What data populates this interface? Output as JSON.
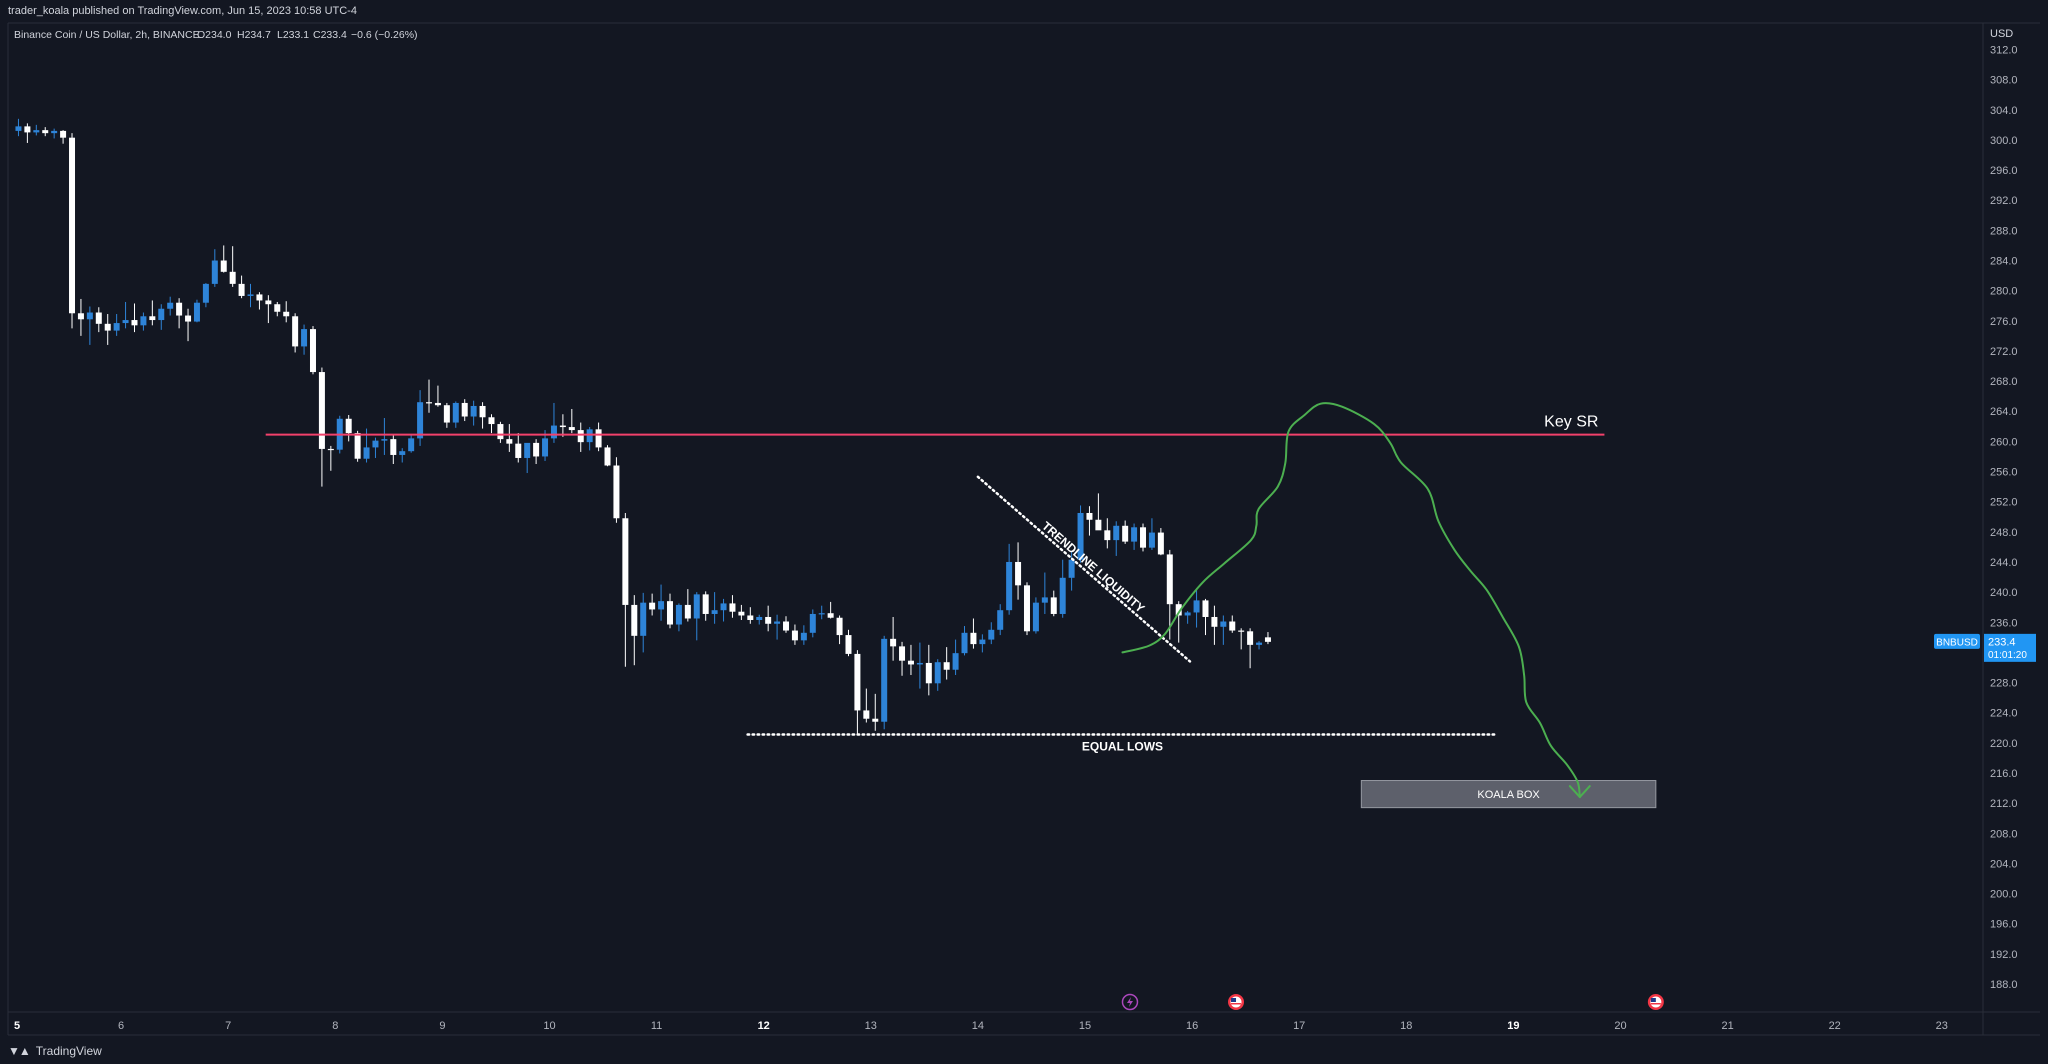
{
  "publisher": {
    "text": "trader_koala published on TradingView.com, Jun 15, 2023 10:58 UTC-4"
  },
  "footer": {
    "brand": "TradingView"
  },
  "legend": {
    "symbol": "Binance Coin / US Dollar, 2h, BINANCE",
    "open": "O234.0",
    "high": "H234.7",
    "low": "L233.1",
    "close": "C233.4",
    "change": "−0.6 (−0.26%)"
  },
  "colors": {
    "background": "#131722",
    "up": "#2e84d8",
    "down": "#ffffff",
    "key_sr": "#f2416b",
    "projection": "#4caf50",
    "price_badge": "#2196f3"
  },
  "chart_data": {
    "type": "candlestick",
    "ylim": [
      184,
      314
    ],
    "xlim": [
      5,
      23.4
    ],
    "currency": "USD",
    "y_ticks": [
      "312.0",
      "308.0",
      "304.0",
      "300.0",
      "296.0",
      "292.0",
      "288.0",
      "284.0",
      "280.0",
      "276.0",
      "272.0",
      "268.0",
      "264.0",
      "260.0",
      "256.0",
      "252.0",
      "248.0",
      "244.0",
      "240.0",
      "236.0",
      "232.0",
      "228.0",
      "224.0",
      "220.0",
      "216.0",
      "212.0",
      "208.0",
      "204.0",
      "200.0",
      "196.0",
      "192.0",
      "188.0"
    ],
    "x_ticks": [
      {
        "label": "5",
        "day": 5,
        "bold": true
      },
      {
        "label": "6",
        "day": 6
      },
      {
        "label": "7",
        "day": 7
      },
      {
        "label": "8",
        "day": 8
      },
      {
        "label": "9",
        "day": 9
      },
      {
        "label": "10",
        "day": 10
      },
      {
        "label": "11",
        "day": 11
      },
      {
        "label": "12",
        "day": 12,
        "bold": true
      },
      {
        "label": "13",
        "day": 13
      },
      {
        "label": "14",
        "day": 14
      },
      {
        "label": "15",
        "day": 15
      },
      {
        "label": "16",
        "day": 16
      },
      {
        "label": "17",
        "day": 17
      },
      {
        "label": "18",
        "day": 18
      },
      {
        "label": "19",
        "day": 19,
        "bold": true
      },
      {
        "label": "20",
        "day": 20
      },
      {
        "label": "21",
        "day": 21
      },
      {
        "label": "22",
        "day": 22
      },
      {
        "label": "23",
        "day": 23
      }
    ],
    "start_day": 5,
    "candles_per_day": 12,
    "candles": [
      [
        301.2,
        302.8,
        300.5,
        301.8
      ],
      [
        301.8,
        302.2,
        299.6,
        301.0
      ],
      [
        301.0,
        302.0,
        300.6,
        301.3
      ],
      [
        301.3,
        301.7,
        300.5,
        300.9
      ],
      [
        300.9,
        301.5,
        300.2,
        301.2
      ],
      [
        301.2,
        301.3,
        299.5,
        300.3
      ],
      [
        300.3,
        300.9,
        275.0,
        277.0
      ],
      [
        277.0,
        278.9,
        274.0,
        276.2
      ],
      [
        276.2,
        277.9,
        272.8,
        277.1
      ],
      [
        277.1,
        277.8,
        274.5,
        275.6
      ],
      [
        275.6,
        276.9,
        272.8,
        274.7
      ],
      [
        274.7,
        276.9,
        274.0,
        275.7
      ],
      [
        275.7,
        278.5,
        275.0,
        276.1
      ],
      [
        276.1,
        278.3,
        274.5,
        275.4
      ],
      [
        275.4,
        277.1,
        274.7,
        276.6
      ],
      [
        276.6,
        278.7,
        275.4,
        276.1
      ],
      [
        276.1,
        278.2,
        274.8,
        277.6
      ],
      [
        277.6,
        279.2,
        276.7,
        278.4
      ],
      [
        278.4,
        279.0,
        275.0,
        276.7
      ],
      [
        276.7,
        277.6,
        273.3,
        275.9
      ],
      [
        275.9,
        278.8,
        275.8,
        278.4
      ],
      [
        278.4,
        281.0,
        277.8,
        280.9
      ],
      [
        280.9,
        285.5,
        280.5,
        284.0
      ],
      [
        284.0,
        286.0,
        282.4,
        282.5
      ],
      [
        282.5,
        285.9,
        280.5,
        280.9
      ],
      [
        280.9,
        282.0,
        279.0,
        279.3
      ],
      [
        279.3,
        280.9,
        277.8,
        279.5
      ],
      [
        279.5,
        279.8,
        277.5,
        278.7
      ],
      [
        278.7,
        279.4,
        275.7,
        278.2
      ],
      [
        278.2,
        278.5,
        276.6,
        277.2
      ],
      [
        277.2,
        278.6,
        275.8,
        276.6
      ],
      [
        276.6,
        277.0,
        271.8,
        272.6
      ],
      [
        272.6,
        275.5,
        271.5,
        274.9
      ],
      [
        274.9,
        275.3,
        268.9,
        269.2
      ],
      [
        269.2,
        269.8,
        254.0,
        259.0
      ],
      [
        259.0,
        259.4,
        256.1,
        258.9
      ],
      [
        258.9,
        263.4,
        258.4,
        263.0
      ],
      [
        263.0,
        263.5,
        260.0,
        261.1
      ],
      [
        261.1,
        261.4,
        257.3,
        257.7
      ],
      [
        257.7,
        261.7,
        257.2,
        259.2
      ],
      [
        259.2,
        260.5,
        257.8,
        260.1
      ],
      [
        260.1,
        263.1,
        258.2,
        260.3
      ],
      [
        260.3,
        260.9,
        257.0,
        258.2
      ],
      [
        258.2,
        259.1,
        257.2,
        258.7
      ],
      [
        258.7,
        260.8,
        258.5,
        260.4
      ],
      [
        260.4,
        266.8,
        259.4,
        265.2
      ],
      [
        265.2,
        268.2,
        263.8,
        265.1
      ],
      [
        265.1,
        267.4,
        264.6,
        264.8
      ],
      [
        264.8,
        265.1,
        261.8,
        262.5
      ],
      [
        262.5,
        265.3,
        261.8,
        265.1
      ],
      [
        265.1,
        265.6,
        262.7,
        263.3
      ],
      [
        263.3,
        265.4,
        262.1,
        264.7
      ],
      [
        264.7,
        265.2,
        261.7,
        263.2
      ],
      [
        263.2,
        263.6,
        261.1,
        262.3
      ],
      [
        262.3,
        262.6,
        259.8,
        260.3
      ],
      [
        260.3,
        262.3,
        258.6,
        259.7
      ],
      [
        259.7,
        261.1,
        257.2,
        257.8
      ],
      [
        257.8,
        259.7,
        255.8,
        259.8
      ],
      [
        259.8,
        260.3,
        257.0,
        258.0
      ],
      [
        258.0,
        261.5,
        257.4,
        260.4
      ],
      [
        260.4,
        265.1,
        259.8,
        262.1
      ],
      [
        262.1,
        263.6,
        260.6,
        261.9
      ],
      [
        261.9,
        264.3,
        261.1,
        261.5
      ],
      [
        261.5,
        262.5,
        258.6,
        259.9
      ],
      [
        259.9,
        261.9,
        258.8,
        261.6
      ],
      [
        261.6,
        262.5,
        258.7,
        259.2
      ],
      [
        259.2,
        259.5,
        256.7,
        256.8
      ],
      [
        256.8,
        257.9,
        249.2,
        249.8
      ],
      [
        249.8,
        250.5,
        230.1,
        238.3
      ],
      [
        238.3,
        239.6,
        230.3,
        234.2
      ],
      [
        234.2,
        239.9,
        232.0,
        238.6
      ],
      [
        238.6,
        239.8,
        236.9,
        237.7
      ],
      [
        237.7,
        241.0,
        236.2,
        238.8
      ],
      [
        238.8,
        239.8,
        235.2,
        235.7
      ],
      [
        235.7,
        238.5,
        234.8,
        238.3
      ],
      [
        238.3,
        240.4,
        236.1,
        236.5
      ],
      [
        236.5,
        240.0,
        233.6,
        239.7
      ],
      [
        239.7,
        240.1,
        236.2,
        237.1
      ],
      [
        237.1,
        240.0,
        235.8,
        237.6
      ],
      [
        237.6,
        239.1,
        236.1,
        238.5
      ],
      [
        238.5,
        239.6,
        236.6,
        237.4
      ],
      [
        237.4,
        238.3,
        236.3,
        236.9
      ],
      [
        236.9,
        238.0,
        235.8,
        236.3
      ],
      [
        236.3,
        237.0,
        235.7,
        236.7
      ],
      [
        236.7,
        238.2,
        234.8,
        235.8
      ],
      [
        235.8,
        237.0,
        233.7,
        236.1
      ],
      [
        236.1,
        236.8,
        234.6,
        234.9
      ],
      [
        234.9,
        235.7,
        233.0,
        233.6
      ],
      [
        233.6,
        235.6,
        233.0,
        234.6
      ],
      [
        234.6,
        237.7,
        234.0,
        237.1
      ],
      [
        237.1,
        238.2,
        236.4,
        237.2
      ],
      [
        237.2,
        238.7,
        236.5,
        236.6
      ],
      [
        236.6,
        236.9,
        233.1,
        234.3
      ],
      [
        234.3,
        235.0,
        231.5,
        231.8
      ],
      [
        231.8,
        232.3,
        221.0,
        224.3
      ],
      [
        224.3,
        227.2,
        222.7,
        223.2
      ],
      [
        223.2,
        226.5,
        221.6,
        222.8
      ],
      [
        222.8,
        234.2,
        221.8,
        233.8
      ],
      [
        233.8,
        236.7,
        230.9,
        232.8
      ],
      [
        232.8,
        233.4,
        228.9,
        230.9
      ],
      [
        230.9,
        233.0,
        229.0,
        230.4
      ],
      [
        230.4,
        233.3,
        227.2,
        230.6
      ],
      [
        230.6,
        233.0,
        226.3,
        227.9
      ],
      [
        227.9,
        231.1,
        226.9,
        230.7
      ],
      [
        230.7,
        232.7,
        228.4,
        229.7
      ],
      [
        229.7,
        233.7,
        229.0,
        231.9
      ],
      [
        231.9,
        235.5,
        231.6,
        234.6
      ],
      [
        234.6,
        236.5,
        232.5,
        233.1
      ],
      [
        233.1,
        234.4,
        232.0,
        233.7
      ],
      [
        233.7,
        236.0,
        233.1,
        235.0
      ],
      [
        235.0,
        238.4,
        234.3,
        237.6
      ],
      [
        237.6,
        246.4,
        237.0,
        244.0
      ],
      [
        244.0,
        246.6,
        239.0,
        240.9
      ],
      [
        240.9,
        241.3,
        234.3,
        234.8
      ],
      [
        234.8,
        239.3,
        234.5,
        238.6
      ],
      [
        238.6,
        242.6,
        237.1,
        239.3
      ],
      [
        239.3,
        240.2,
        236.8,
        237.1
      ],
      [
        237.1,
        244.3,
        236.6,
        241.9
      ],
      [
        241.9,
        245.4,
        240.2,
        244.3
      ],
      [
        244.3,
        251.5,
        243.9,
        250.5
      ],
      [
        250.5,
        251.4,
        247.5,
        249.6
      ],
      [
        249.6,
        253.1,
        249.3,
        248.2
      ],
      [
        248.2,
        249.8,
        245.8,
        246.9
      ],
      [
        246.9,
        249.4,
        244.8,
        248.8
      ],
      [
        248.8,
        249.5,
        246.4,
        246.7
      ],
      [
        246.7,
        249.1,
        245.6,
        248.6
      ],
      [
        248.6,
        249.1,
        245.4,
        245.9
      ],
      [
        245.9,
        249.8,
        245.6,
        247.9
      ],
      [
        247.9,
        248.5,
        244.9,
        245.0
      ],
      [
        245.0,
        245.6,
        233.7,
        238.4
      ],
      [
        238.4,
        238.8,
        233.3,
        236.9
      ],
      [
        236.9,
        237.5,
        235.8,
        237.3
      ],
      [
        237.3,
        240.5,
        235.3,
        238.9
      ],
      [
        238.9,
        239.1,
        234.3,
        236.7
      ],
      [
        236.7,
        238.2,
        233.0,
        235.4
      ],
      [
        235.4,
        236.9,
        233.0,
        236.1
      ],
      [
        236.1,
        236.9,
        234.6,
        234.9
      ],
      [
        234.9,
        235.2,
        232.4,
        234.8
      ],
      [
        234.8,
        235.2,
        229.9,
        233.0
      ],
      [
        233.0,
        233.5,
        232.4,
        233.3
      ],
      [
        234.0,
        234.7,
        233.1,
        233.4
      ]
    ],
    "price_label": {
      "symbol": "BNBUSD",
      "price": "233.4",
      "countdown": "01:01:20",
      "value": 233.4
    },
    "annotations": {
      "key_sr": {
        "label": "Key SR",
        "price": 260.9,
        "from_day": 7.35,
        "to_day": 19.85
      },
      "equal_lows": {
        "label": "EQUAL LOWS",
        "price": 221.1,
        "from_day": 11.85,
        "to_day": 18.85
      },
      "trendline": {
        "label": "TRENDLINE LIQUIDITY",
        "from": [
          14.0,
          255.3
        ],
        "to": [
          15.98,
          230.8
        ]
      },
      "koala_box": {
        "label": "KOALA BOX",
        "from_day": 17.58,
        "to_day": 20.33,
        "top": 215.0,
        "bottom": 211.4
      },
      "projection_path": [
        [
          15.35,
          232.0
        ],
        [
          15.6,
          232.9
        ],
        [
          15.75,
          234.5
        ],
        [
          15.9,
          237.8
        ],
        [
          16.1,
          241.3
        ],
        [
          16.3,
          243.8
        ],
        [
          16.55,
          246.9
        ],
        [
          16.6,
          248.8
        ],
        [
          16.62,
          251.0
        ],
        [
          16.8,
          254.0
        ],
        [
          16.87,
          257.1
        ],
        [
          16.9,
          261.3
        ],
        [
          17.05,
          263.5
        ],
        [
          17.2,
          265.0
        ],
        [
          17.4,
          264.6
        ],
        [
          17.7,
          262.3
        ],
        [
          17.85,
          259.8
        ],
        [
          17.95,
          257.2
        ],
        [
          18.2,
          253.7
        ],
        [
          18.3,
          249.4
        ],
        [
          18.45,
          245.6
        ],
        [
          18.6,
          242.8
        ],
        [
          18.75,
          240.3
        ],
        [
          18.9,
          236.7
        ],
        [
          19.05,
          232.8
        ],
        [
          19.1,
          229.0
        ],
        [
          19.12,
          225.4
        ],
        [
          19.25,
          222.6
        ],
        [
          19.35,
          219.6
        ],
        [
          19.5,
          217.1
        ],
        [
          19.6,
          214.8
        ],
        [
          19.62,
          212.8
        ]
      ],
      "event_markers": [
        {
          "day": 15.42,
          "kind": "flash"
        },
        {
          "day": 16.41,
          "kind": "flag"
        },
        {
          "day": 20.33,
          "kind": "flag"
        }
      ]
    }
  }
}
